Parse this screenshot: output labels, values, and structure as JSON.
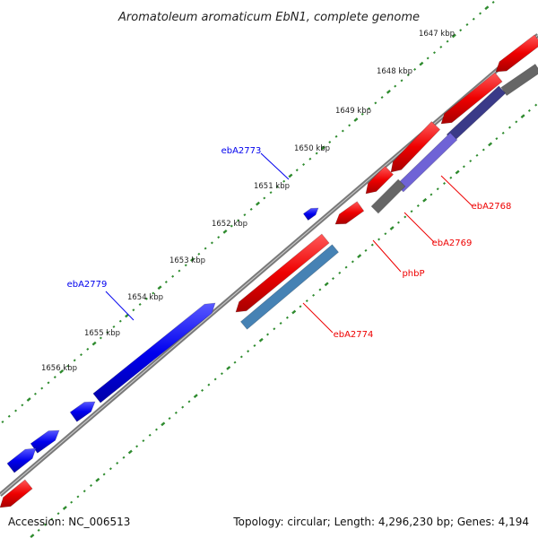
{
  "title": "Aromatoleum aromaticum EbN1, complete genome",
  "footer": {
    "accession": "Accession: NC_006513",
    "summary": "Topology: circular; Length: 4,296,230 bp; Genes: 4,194"
  },
  "scale": {
    "unit": "kbp",
    "labels": [
      "1647 kbp",
      "1648 kbp",
      "1649 kbp",
      "1650 kbp",
      "1651 kbp",
      "1652 kbp",
      "1653 kbp",
      "1654 kbp",
      "1655 kbp",
      "1656 kbp"
    ]
  },
  "genes": {
    "forward_color": "#0000ee",
    "reverse_color": "#ee0000",
    "labels": [
      {
        "name": "ebA2773",
        "strand": "forward"
      },
      {
        "name": "ebA2779",
        "strand": "forward"
      },
      {
        "name": "ebA2768",
        "strand": "reverse"
      },
      {
        "name": "ebA2769",
        "strand": "reverse"
      },
      {
        "name": "phbP",
        "strand": "reverse"
      },
      {
        "name": "ebA2774",
        "strand": "reverse"
      }
    ]
  },
  "colors": {
    "backbone": "#7a7a7a",
    "tick_dots": "#2e8b2e",
    "forward_cds": "#0000ee",
    "reverse_cds": "#ee0000",
    "feature_purple": "#6f63d6",
    "feature_steel": "#4682b4",
    "feature_gray": "#666666"
  }
}
